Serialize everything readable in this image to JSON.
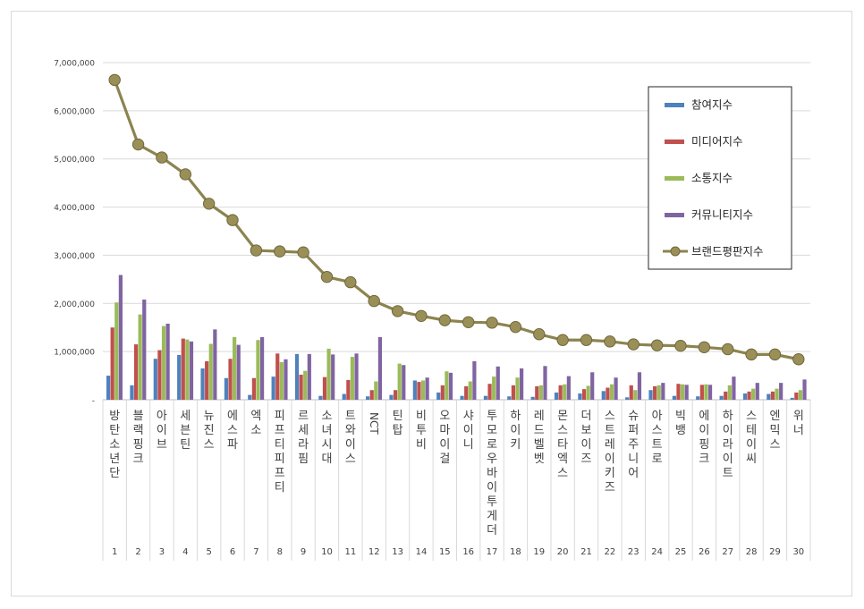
{
  "chart_data": {
    "type": "bar",
    "title": "",
    "xlabel": "",
    "ylabel": "",
    "ylim": [
      0,
      7000000
    ],
    "y_ticks": [
      "-",
      "1,000,000",
      "2,000,000",
      "3,000,000",
      "4,000,000",
      "5,000,000",
      "6,000,000",
      "7,000,000"
    ],
    "grid": true,
    "legend_position": "top-right",
    "categories": [
      "방탄소년단",
      "블랙핑크",
      "아이브",
      "세븐틴",
      "뉴진스",
      "에스파",
      "엑소",
      "피프티피프티",
      "르세라핌",
      "소녀시대",
      "트와이스",
      "NCT",
      "틴탑",
      "비투비",
      "오마이걸",
      "샤이니",
      "투모로우바이투게더",
      "하이키",
      "레드벨벳",
      "몬스타엑스",
      "더보이즈",
      "스트레이키즈",
      "슈퍼주니어",
      "아스트로",
      "빅뱅",
      "에이핑크",
      "하이라이트",
      "스테이씨",
      "엔믹스",
      "위너"
    ],
    "ranks": [
      "1",
      "2",
      "3",
      "4",
      "5",
      "6",
      "7",
      "8",
      "9",
      "10",
      "11",
      "12",
      "13",
      "14",
      "15",
      "16",
      "17",
      "18",
      "19",
      "20",
      "21",
      "22",
      "23",
      "24",
      "25",
      "26",
      "27",
      "28",
      "29",
      "30"
    ],
    "series": [
      {
        "name": "참여지수",
        "type": "bar",
        "color": "#4f81bd",
        "values": [
          500000,
          300000,
          850000,
          930000,
          650000,
          450000,
          100000,
          480000,
          950000,
          80000,
          120000,
          70000,
          100000,
          400000,
          150000,
          80000,
          80000,
          70000,
          60000,
          150000,
          130000,
          180000,
          50000,
          200000,
          80000,
          70000,
          80000,
          130000,
          120000,
          40000
        ]
      },
      {
        "name": "미디어지수",
        "type": "bar",
        "color": "#c0504d",
        "values": [
          1500000,
          1150000,
          1030000,
          1270000,
          800000,
          850000,
          450000,
          960000,
          520000,
          470000,
          410000,
          200000,
          200000,
          370000,
          300000,
          280000,
          330000,
          300000,
          280000,
          300000,
          220000,
          250000,
          300000,
          280000,
          330000,
          310000,
          170000,
          170000,
          170000,
          150000
        ]
      },
      {
        "name": "소통지수",
        "type": "bar",
        "color": "#9bbb59",
        "values": [
          2020000,
          1770000,
          1530000,
          1250000,
          1160000,
          1300000,
          1240000,
          780000,
          600000,
          1060000,
          890000,
          380000,
          750000,
          400000,
          590000,
          380000,
          480000,
          460000,
          300000,
          320000,
          290000,
          320000,
          200000,
          300000,
          320000,
          320000,
          300000,
          230000,
          230000,
          200000
        ]
      },
      {
        "name": "커뮤니티지수",
        "type": "bar",
        "color": "#8064a2",
        "values": [
          2590000,
          2080000,
          1580000,
          1210000,
          1460000,
          1140000,
          1300000,
          840000,
          950000,
          940000,
          960000,
          1300000,
          720000,
          460000,
          560000,
          800000,
          690000,
          650000,
          700000,
          490000,
          570000,
          460000,
          570000,
          350000,
          310000,
          310000,
          480000,
          350000,
          350000,
          420000
        ]
      },
      {
        "name": "브랜드평판지수",
        "type": "line",
        "color": "#8c8450",
        "values": [
          6640000,
          5300000,
          5030000,
          4680000,
          4070000,
          3730000,
          3100000,
          3080000,
          3060000,
          2550000,
          2440000,
          2050000,
          1840000,
          1740000,
          1650000,
          1610000,
          1600000,
          1510000,
          1360000,
          1240000,
          1240000,
          1210000,
          1150000,
          1130000,
          1120000,
          1090000,
          1050000,
          940000,
          940000,
          840000
        ]
      }
    ]
  }
}
